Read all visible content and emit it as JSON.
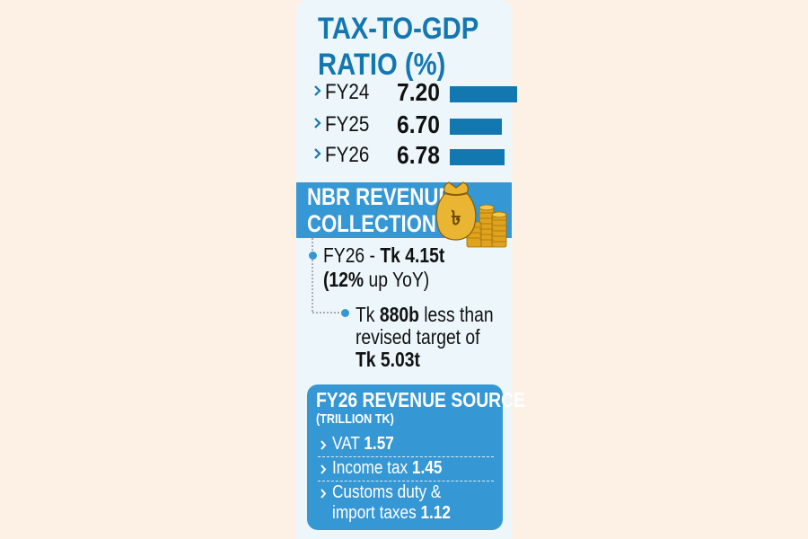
{
  "title_lines": [
    "TAX-TO-GDP",
    "RATIO (%)"
  ],
  "colors": {
    "accent": "#1377b0",
    "banner": "#3597d4",
    "panel": "#edf6fb",
    "page": "#fdf1e6"
  },
  "chart_data": {
    "type": "bar",
    "title": "TAX-TO-GDP RATIO (%)",
    "categories": [
      "FY24",
      "FY25",
      "FY26"
    ],
    "values": [
      7.2,
      6.7,
      6.78
    ],
    "value_labels": [
      "7.20",
      "6.70",
      "6.78"
    ],
    "xlim": [
      5.0,
      7.2
    ]
  },
  "nbr": {
    "title_lines": [
      "NBR REVENUE",
      "COLLECTION"
    ],
    "line1_pre": "FY26 - ",
    "line1_bold": "Tk 4.15t",
    "line2_bold": "(12%",
    "line2_post": " up YoY)",
    "sub_line1_pre": "Tk ",
    "sub_line1_bold": "880b",
    "sub_line1_post": " less than",
    "sub_line2": "revised target of",
    "sub_line3_bold": "Tk 5.03t"
  },
  "revenue_source": {
    "title": "FY26 REVENUE SOURCE",
    "subtitle": "(TRILLION TK)",
    "items": [
      {
        "label": "VAT ",
        "value": "1.57"
      },
      {
        "label": "Income tax ",
        "value": "1.45"
      },
      {
        "label": "Customs duty &",
        "label2": "import taxes ",
        "value": "1.12"
      }
    ]
  }
}
